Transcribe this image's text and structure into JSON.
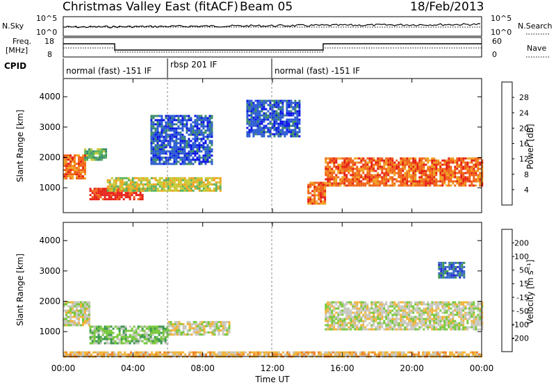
{
  "header": {
    "station": "Christmas Valley East (fitACF)",
    "beam": "Beam 05",
    "date": "18/Feb/2013"
  },
  "panels": {
    "nsky_label": "N.Sky",
    "nsearch_label": "N.Search",
    "freq_label_line1": "Freq.",
    "freq_label_line2": "[MHz]",
    "nave_label": "Nave",
    "cpid_label": "CPID",
    "nsky_ticks": [
      "10^5",
      "10^0"
    ],
    "nsearch_ticks": [
      "10^5",
      "10^0"
    ],
    "freq_ticks": [
      "18",
      "8"
    ],
    "nave_ticks": [
      "60",
      "0"
    ]
  },
  "cpid_segments": [
    {
      "label": "normal (fast) -151 IF",
      "start_h": 0,
      "end_h": 6
    },
    {
      "label": "rbsp 201 IF",
      "start_h": 6,
      "end_h": 12
    },
    {
      "label": "normal (fast) -151 IF",
      "start_h": 12,
      "end_h": 24
    }
  ],
  "axes": {
    "ylabel": "Slant Range [km]",
    "xlabel": "Time UT",
    "y_ticks": [
      "1000",
      "2000",
      "3000",
      "4000"
    ],
    "x_ticks": [
      "00:00",
      "04:00",
      "08:00",
      "12:00",
      "16:00",
      "20:00",
      "00:00"
    ]
  },
  "colorbars": {
    "power": {
      "label": "Power [dB]",
      "ticks": [
        "4",
        "8",
        "12",
        "16",
        "20",
        "24",
        "28"
      ],
      "colors": [
        "#0a12e6",
        "#2a5ad2",
        "#3a8a6a",
        "#5ab45a",
        "#c8c832",
        "#f0a020",
        "#f06418",
        "#e61e14"
      ]
    },
    "velocity": {
      "label": "Velocity [m s⁻¹]",
      "ticks": [
        "200",
        "100",
        "50",
        "15",
        "-15",
        "-50",
        "-100",
        "-200"
      ],
      "colors": [
        "#1e28c8",
        "#3264c8",
        "#3c9650",
        "#78c83c",
        "#c8c8c0",
        "#f0b43c",
        "#f08228",
        "#e63c1e",
        "#e6140a"
      ]
    }
  },
  "chart_data": [
    {
      "type": "heatmap",
      "title": "Power",
      "x_range_hours": [
        0,
        24
      ],
      "y_range_km": [
        180,
        4600
      ],
      "regions": [
        {
          "t0": 0.0,
          "t1": 1.2,
          "r0": 1300,
          "r1": 2100,
          "level": 6
        },
        {
          "t0": 1.2,
          "t1": 2.5,
          "r0": 1900,
          "r1": 2300,
          "level": 3
        },
        {
          "t0": 1.5,
          "t1": 4.5,
          "r0": 650,
          "r1": 1000,
          "level": 7
        },
        {
          "t0": 2.5,
          "t1": 9.0,
          "r0": 900,
          "r1": 1350,
          "level": 4
        },
        {
          "t0": 14.0,
          "t1": 15.0,
          "r0": 500,
          "r1": 1200,
          "level": 6
        },
        {
          "t0": 15.0,
          "t1": 24.0,
          "r0": 1100,
          "r1": 2000,
          "level": 6
        },
        {
          "t0": 5.0,
          "t1": 8.5,
          "r0": 1800,
          "r1": 3400,
          "level": 1
        },
        {
          "t0": 10.5,
          "t1": 13.5,
          "r0": 2700,
          "r1": 3900,
          "level": 1
        }
      ]
    },
    {
      "type": "heatmap",
      "title": "Velocity",
      "x_range_hours": [
        0,
        24
      ],
      "y_range_km": [
        180,
        4600
      ],
      "regions": [
        {
          "t0": 0.0,
          "t1": 1.5,
          "r0": 1200,
          "r1": 2000,
          "level": 4
        },
        {
          "t0": 1.5,
          "t1": 6.0,
          "r0": 650,
          "r1": 1200,
          "level": 3
        },
        {
          "t0": 6.0,
          "t1": 9.5,
          "r0": 900,
          "r1": 1350,
          "level": 4
        },
        {
          "t0": 15.0,
          "t1": 24.0,
          "r0": 1100,
          "r1": 2000,
          "level": 4
        },
        {
          "t0": 21.5,
          "t1": 23.0,
          "r0": 2800,
          "r1": 3300,
          "level": 1
        },
        {
          "t0": 0.0,
          "t1": 24.0,
          "r0": 180,
          "r1": 350,
          "level": 5
        }
      ]
    }
  ]
}
